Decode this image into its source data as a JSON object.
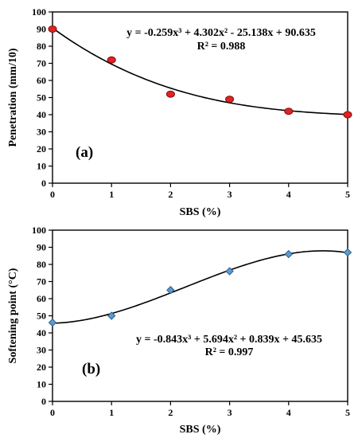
{
  "chart_data": [
    {
      "type": "scatter",
      "panel_label": "(a)",
      "xlabel": "SBS (%)",
      "ylabel": "Penetration (mm/10)",
      "xlim": [
        0,
        5
      ],
      "ylim": [
        0,
        100
      ],
      "x_ticks": [
        "0",
        "1",
        "2",
        "3",
        "4",
        "5"
      ],
      "y_ticks": [
        "0",
        "10",
        "20",
        "30",
        "40",
        "50",
        "60",
        "70",
        "80",
        "90",
        "100"
      ],
      "grid": false,
      "series": [
        {
          "marker": "circle",
          "color": "#e32222",
          "x": [
            0,
            1,
            2,
            3,
            4,
            5
          ],
          "y": [
            90,
            72,
            52,
            49,
            42,
            40
          ]
        }
      ],
      "trendline": {
        "type": "polynomial",
        "coefficients": [
          -0.259,
          4.302,
          -25.138,
          90.635
        ],
        "equation": "y = -0.259x³ + 4.302x² - 25.138x + 90.635",
        "r2": "R² = 0.988"
      }
    },
    {
      "type": "scatter",
      "panel_label": "(b)",
      "xlabel": "SBS (%)",
      "ylabel": "Softening point (°C)",
      "xlim": [
        0,
        5
      ],
      "ylim": [
        0,
        100
      ],
      "x_ticks": [
        "0",
        "1",
        "2",
        "3",
        "4",
        "5"
      ],
      "y_ticks": [
        "0",
        "10",
        "20",
        "30",
        "40",
        "50",
        "60",
        "70",
        "80",
        "90",
        "100"
      ],
      "grid": false,
      "series": [
        {
          "marker": "diamond",
          "color": "#5b9bd5",
          "x": [
            0,
            1,
            2,
            3,
            4,
            5
          ],
          "y": [
            46,
            50,
            65,
            76,
            86,
            87
          ]
        }
      ],
      "trendline": {
        "type": "polynomial",
        "coefficients": [
          -0.843,
          5.694,
          0.839,
          45.635
        ],
        "equation": "y = -0.843x³ + 5.694x² + 0.839x + 45.635",
        "r2": "R² = 0.997"
      }
    }
  ]
}
